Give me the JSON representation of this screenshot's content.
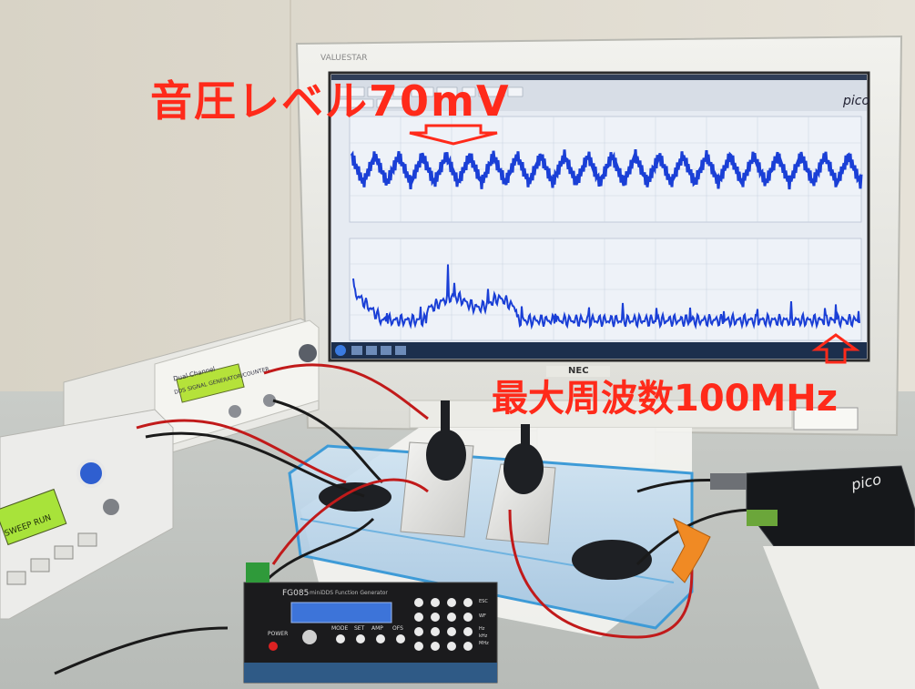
{
  "annotations": {
    "sound_pressure": "音圧レベル70mV",
    "max_frequency": "最大周波数100MHz"
  },
  "devices": {
    "monitor_brand": "VALUESTAR",
    "monitor_maker": "NEC",
    "software_logo": "pico",
    "scope_logo": "pico",
    "generator_model": "FG085",
    "generator_subtitle": "miniDDS Function Generator",
    "generator_buttons": [
      "MODE",
      "SET",
      "AMP",
      "OFS"
    ],
    "generator_side_keys": [
      "ESC",
      "WF",
      "Hz",
      "kHz",
      "MHz"
    ],
    "power_label": "POWER",
    "dual_channel_title": "Dual Channel",
    "dual_channel_subtitle": "DDS SIGNAL GENERATOR/COUNTER",
    "lcd_text": "SWEEP RUN"
  },
  "colors": {
    "annotation": "#ff2a1a",
    "waveform": "#1a3fd6",
    "screen_bg": "#e6ebf2",
    "wall": "#dedad0"
  }
}
